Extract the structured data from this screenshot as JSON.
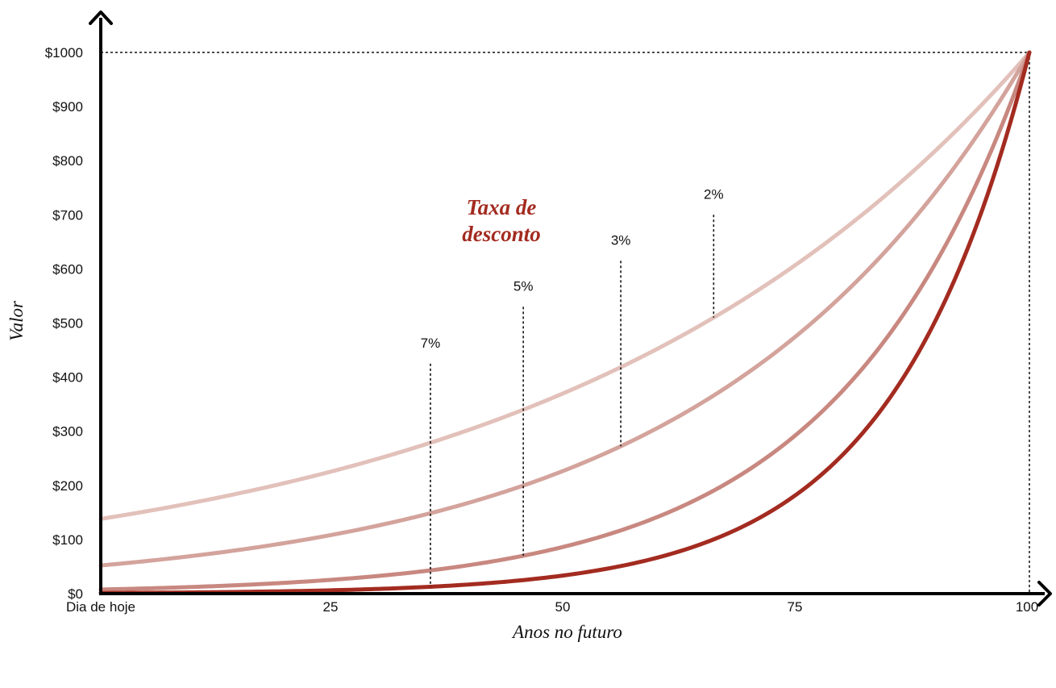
{
  "chart_data": {
    "type": "line",
    "title": "",
    "xlabel": "Anos no futuro",
    "ylabel": "Valor",
    "legend_title": "Taxa de desconto",
    "x_ticks": [
      {
        "value": 0,
        "label": "Dia de hoje"
      },
      {
        "value": 25,
        "label": "25"
      },
      {
        "value": 50,
        "label": "50"
      },
      {
        "value": 75,
        "label": "75"
      },
      {
        "value": 100,
        "label": "100"
      }
    ],
    "y_ticks": [
      {
        "value": 0,
        "label": "$0"
      },
      {
        "value": 100,
        "label": "$100"
      },
      {
        "value": 200,
        "label": "$200"
      },
      {
        "value": 300,
        "label": "$300"
      },
      {
        "value": 400,
        "label": "$400"
      },
      {
        "value": 500,
        "label": "$500"
      },
      {
        "value": 600,
        "label": "$600"
      },
      {
        "value": 700,
        "label": "$700"
      },
      {
        "value": 800,
        "label": "$800"
      },
      {
        "value": 900,
        "label": "$900"
      },
      {
        "value": 1000,
        "label": "$1000"
      }
    ],
    "xlim": [
      0,
      100
    ],
    "ylim": [
      0,
      1000
    ],
    "future_value": 1000,
    "grid": false,
    "series": [
      {
        "name": "2%",
        "rate": 0.02,
        "color": "#e2c1ba",
        "label_x": 66
      },
      {
        "name": "3%",
        "rate": 0.03,
        "color": "#d3a39c",
        "label_x": 56
      },
      {
        "name": "5%",
        "rate": 0.05,
        "color": "#c88880",
        "label_x": 45.5
      },
      {
        "name": "7%",
        "rate": 0.07,
        "color": "#a32b20",
        "label_x": 35.5
      }
    ]
  }
}
